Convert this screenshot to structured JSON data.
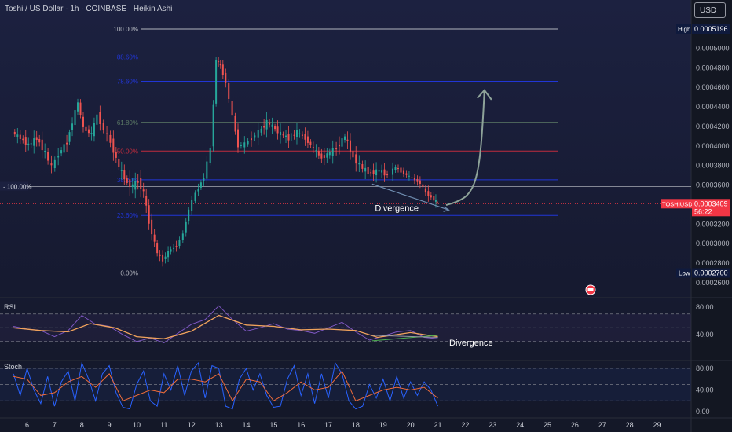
{
  "header": {
    "title": "Toshi / US Dollar · 1h · COINBASE · Heikin Ashi",
    "currency": "USD"
  },
  "chart_data": [
    {
      "type": "candlestick",
      "title": "Toshi / US Dollar · 1h · COINBASE · Heikin Ashi",
      "price_axis": [
        "0.0005000",
        "0.0004800",
        "0.0004600",
        "0.0004400",
        "0.0004200",
        "0.0004000",
        "0.0003800",
        "0.0003600",
        "0.0003400",
        "0.0003200",
        "0.0003000",
        "0.0002800",
        "0.0002600"
      ],
      "x_ticks": [
        "6",
        "7",
        "8",
        "9",
        "10",
        "11",
        "12",
        "13",
        "14",
        "15",
        "16",
        "17",
        "18",
        "19",
        "20",
        "21",
        "22",
        "23",
        "24",
        "25",
        "26",
        "27",
        "28",
        "29"
      ],
      "fib_levels": [
        {
          "label": "100.00%",
          "price": 0.0005196,
          "color": "#b2b5be"
        },
        {
          "label": "88.60%",
          "price": 0.0004911,
          "color": "#2136d6"
        },
        {
          "label": "78.60%",
          "price": 0.0004661,
          "color": "#2136d6"
        },
        {
          "label": "61.80%",
          "price": 0.0004241,
          "color": "#5c7a65"
        },
        {
          "label": "50.00%",
          "price": 0.0003948,
          "color": "#c02c3d"
        },
        {
          "label": "38.20%",
          "price": 0.0003654,
          "color": "#2136d6"
        },
        {
          "label": "23.60%",
          "price": 0.0003289,
          "color": "#2136d6"
        },
        {
          "label": "0.00%",
          "price": 0.00027,
          "color": "#b2b5be"
        }
      ],
      "horizontal_line": {
        "label": "100.00%",
        "price": 0.0003584
      },
      "high": {
        "label": "High",
        "price": "0.0005196"
      },
      "low": {
        "label": "Low",
        "price": "0.0002700"
      },
      "current": {
        "symbol": "TOSHIUSD",
        "price": "0.0003409",
        "countdown": "56:22"
      },
      "annotations": [
        "Divergence"
      ],
      "series_close": [
        {
          "day": 5.5,
          "price": 0.000414
        },
        {
          "day": 5.8,
          "price": 0.000408
        },
        {
          "day": 6.1,
          "price": 0.000401
        },
        {
          "day": 6.4,
          "price": 0.000408
        },
        {
          "day": 6.7,
          "price": 0.000393
        },
        {
          "day": 6.95,
          "price": 0.000378
        },
        {
          "day": 7.2,
          "price": 0.000392
        },
        {
          "day": 7.5,
          "price": 0.000404
        },
        {
          "day": 7.9,
          "price": 0.000445
        },
        {
          "day": 8.1,
          "price": 0.000418
        },
        {
          "day": 8.4,
          "price": 0.000412
        },
        {
          "day": 8.6,
          "price": 0.000432
        },
        {
          "day": 8.85,
          "price": 0.000416
        },
        {
          "day": 9.1,
          "price": 0.000404
        },
        {
          "day": 9.4,
          "price": 0.000378
        },
        {
          "day": 9.7,
          "price": 0.000362
        },
        {
          "day": 9.9,
          "price": 0.000359
        },
        {
          "day": 10.1,
          "price": 0.000364
        },
        {
          "day": 10.3,
          "price": 0.000352
        },
        {
          "day": 10.5,
          "price": 0.000322
        },
        {
          "day": 10.8,
          "price": 0.00029
        },
        {
          "day": 11.0,
          "price": 0.000283
        },
        {
          "day": 11.2,
          "price": 0.000292
        },
        {
          "day": 11.5,
          "price": 0.000298
        },
        {
          "day": 11.75,
          "price": 0.00031
        },
        {
          "day": 11.95,
          "price": 0.000335
        },
        {
          "day": 12.2,
          "price": 0.000352
        },
        {
          "day": 12.5,
          "price": 0.000368
        },
        {
          "day": 12.75,
          "price": 0.000398
        },
        {
          "day": 12.95,
          "price": 0.000488
        },
        {
          "day": 13.1,
          "price": 0.000482
        },
        {
          "day": 13.3,
          "price": 0.000465
        },
        {
          "day": 13.55,
          "price": 0.00043
        },
        {
          "day": 13.75,
          "price": 0.0004
        },
        {
          "day": 14.0,
          "price": 0.000402
        },
        {
          "day": 14.25,
          "price": 0.000408
        },
        {
          "day": 14.5,
          "price": 0.000414
        },
        {
          "day": 14.8,
          "price": 0.000424
        },
        {
          "day": 15.0,
          "price": 0.00042
        },
        {
          "day": 15.3,
          "price": 0.000412
        },
        {
          "day": 15.6,
          "price": 0.000408
        },
        {
          "day": 15.9,
          "price": 0.000414
        },
        {
          "day": 16.2,
          "price": 0.000408
        },
        {
          "day": 16.5,
          "price": 0.000397
        },
        {
          "day": 16.8,
          "price": 0.000388
        },
        {
          "day": 17.1,
          "price": 0.000393
        },
        {
          "day": 17.35,
          "price": 0.000398
        },
        {
          "day": 17.65,
          "price": 0.00041
        },
        {
          "day": 17.95,
          "price": 0.000388
        },
        {
          "day": 18.3,
          "price": 0.000377
        },
        {
          "day": 18.6,
          "price": 0.000372
        },
        {
          "day": 18.9,
          "price": 0.000375
        },
        {
          "day": 19.2,
          "price": 0.00037
        },
        {
          "day": 19.5,
          "price": 0.000378
        },
        {
          "day": 19.8,
          "price": 0.000372
        },
        {
          "day": 20.1,
          "price": 0.000367
        },
        {
          "day": 20.4,
          "price": 0.000362
        },
        {
          "day": 20.6,
          "price": 0.000352
        },
        {
          "day": 20.9,
          "price": 0.000345
        },
        {
          "day": 21.0,
          "price": 0.000341
        }
      ],
      "projection_target_price": 0.000457
    },
    {
      "type": "line",
      "title": "RSI",
      "y_ticks": [
        "80.00",
        "40.00"
      ],
      "annotations": [
        "Divergence"
      ],
      "series": [
        {
          "name": "RSI",
          "color": "#7e57c2",
          "values": [
            {
              "day": 5.5,
              "value": 52
            },
            {
              "day": 6.0,
              "value": 48
            },
            {
              "day": 6.5,
              "value": 46
            },
            {
              "day": 7.0,
              "value": 37
            },
            {
              "day": 7.5,
              "value": 46
            },
            {
              "day": 8.0,
              "value": 68
            },
            {
              "day": 8.5,
              "value": 55
            },
            {
              "day": 9.0,
              "value": 52
            },
            {
              "day": 9.5,
              "value": 40
            },
            {
              "day": 10.0,
              "value": 30
            },
            {
              "day": 10.5,
              "value": 35
            },
            {
              "day": 11.0,
              "value": 28
            },
            {
              "day": 11.5,
              "value": 42
            },
            {
              "day": 12.0,
              "value": 55
            },
            {
              "day": 12.5,
              "value": 62
            },
            {
              "day": 13.0,
              "value": 82
            },
            {
              "day": 13.5,
              "value": 62
            },
            {
              "day": 14.0,
              "value": 45
            },
            {
              "day": 14.5,
              "value": 50
            },
            {
              "day": 15.0,
              "value": 56
            },
            {
              "day": 15.5,
              "value": 48
            },
            {
              "day": 16.0,
              "value": 46
            },
            {
              "day": 16.5,
              "value": 42
            },
            {
              "day": 17.0,
              "value": 50
            },
            {
              "day": 17.5,
              "value": 58
            },
            {
              "day": 18.0,
              "value": 44
            },
            {
              "day": 18.5,
              "value": 32
            },
            {
              "day": 19.0,
              "value": 38
            },
            {
              "day": 19.5,
              "value": 44
            },
            {
              "day": 20.0,
              "value": 46
            },
            {
              "day": 20.5,
              "value": 36
            },
            {
              "day": 21.0,
              "value": 34
            }
          ]
        },
        {
          "name": "RSI-based MA",
          "color": "#f0a25c",
          "values": [
            {
              "day": 5.5,
              "value": 50
            },
            {
              "day": 6.5,
              "value": 46
            },
            {
              "day": 7.5,
              "value": 44
            },
            {
              "day": 8.3,
              "value": 56
            },
            {
              "day": 9.2,
              "value": 50
            },
            {
              "day": 10.0,
              "value": 37
            },
            {
              "day": 11.0,
              "value": 34
            },
            {
              "day": 12.0,
              "value": 45
            },
            {
              "day": 13.0,
              "value": 68
            },
            {
              "day": 14.0,
              "value": 54
            },
            {
              "day": 15.0,
              "value": 52
            },
            {
              "day": 16.0,
              "value": 47
            },
            {
              "day": 17.0,
              "value": 48
            },
            {
              "day": 18.0,
              "value": 46
            },
            {
              "day": 18.8,
              "value": 36
            },
            {
              "day": 20.0,
              "value": 43
            },
            {
              "day": 21.0,
              "value": 37
            }
          ]
        }
      ]
    },
    {
      "type": "line",
      "title": "Stoch",
      "y_ticks": [
        "80.00",
        "40.00",
        "0.00"
      ],
      "series": [
        {
          "name": "%K",
          "color": "#2962ff",
          "values": [
            {
              "day": 5.5,
              "value": 70
            },
            {
              "day": 5.75,
              "value": 30
            },
            {
              "day": 6.0,
              "value": 80
            },
            {
              "day": 6.25,
              "value": 40
            },
            {
              "day": 6.5,
              "value": 15
            },
            {
              "day": 6.75,
              "value": 65
            },
            {
              "day": 7.0,
              "value": 10
            },
            {
              "day": 7.25,
              "value": 55
            },
            {
              "day": 7.5,
              "value": 75
            },
            {
              "day": 7.75,
              "value": 20
            },
            {
              "day": 8.0,
              "value": 90
            },
            {
              "day": 8.25,
              "value": 60
            },
            {
              "day": 8.5,
              "value": 20
            },
            {
              "day": 8.75,
              "value": 70
            },
            {
              "day": 9.0,
              "value": 85
            },
            {
              "day": 9.25,
              "value": 35
            },
            {
              "day": 9.5,
              "value": 8
            },
            {
              "day": 9.75,
              "value": 5
            },
            {
              "day": 10.0,
              "value": 50
            },
            {
              "day": 10.25,
              "value": 75
            },
            {
              "day": 10.5,
              "value": 20
            },
            {
              "day": 10.75,
              "value": 10
            },
            {
              "day": 11.0,
              "value": 70
            },
            {
              "day": 11.25,
              "value": 40
            },
            {
              "day": 11.5,
              "value": 85
            },
            {
              "day": 11.75,
              "value": 30
            },
            {
              "day": 12.0,
              "value": 75
            },
            {
              "day": 12.25,
              "value": 90
            },
            {
              "day": 12.5,
              "value": 25
            },
            {
              "day": 12.75,
              "value": 85
            },
            {
              "day": 13.0,
              "value": 80
            },
            {
              "day": 13.25,
              "value": 10
            },
            {
              "day": 13.5,
              "value": 5
            },
            {
              "day": 13.75,
              "value": 60
            },
            {
              "day": 14.0,
              "value": 80
            },
            {
              "day": 14.25,
              "value": 40
            },
            {
              "day": 14.5,
              "value": 70
            },
            {
              "day": 14.75,
              "value": 30
            },
            {
              "day": 15.0,
              "value": 8
            },
            {
              "day": 15.25,
              "value": 10
            },
            {
              "day": 15.5,
              "value": 60
            },
            {
              "day": 15.75,
              "value": 85
            },
            {
              "day": 16.0,
              "value": 30
            },
            {
              "day": 16.25,
              "value": 70
            },
            {
              "day": 16.5,
              "value": 15
            },
            {
              "day": 16.75,
              "value": 70
            },
            {
              "day": 17.0,
              "value": 25
            },
            {
              "day": 17.25,
              "value": 90
            },
            {
              "day": 17.5,
              "value": 70
            },
            {
              "day": 17.75,
              "value": 20
            },
            {
              "day": 18.0,
              "value": 5
            },
            {
              "day": 18.25,
              "value": 10
            },
            {
              "day": 18.5,
              "value": 50
            },
            {
              "day": 18.75,
              "value": 25
            },
            {
              "day": 19.0,
              "value": 60
            },
            {
              "day": 19.25,
              "value": 20
            },
            {
              "day": 19.5,
              "value": 65
            },
            {
              "day": 19.75,
              "value": 25
            },
            {
              "day": 20.0,
              "value": 55
            },
            {
              "day": 20.25,
              "value": 30
            },
            {
              "day": 20.5,
              "value": 55
            },
            {
              "day": 20.75,
              "value": 40
            },
            {
              "day": 21.0,
              "value": 10
            }
          ]
        },
        {
          "name": "%D",
          "color": "#ef6c3a",
          "values": [
            {
              "day": 5.5,
              "value": 65
            },
            {
              "day": 6.0,
              "value": 60
            },
            {
              "day": 6.5,
              "value": 30
            },
            {
              "day": 7.0,
              "value": 35
            },
            {
              "day": 7.5,
              "value": 55
            },
            {
              "day": 8.0,
              "value": 65
            },
            {
              "day": 8.5,
              "value": 45
            },
            {
              "day": 9.0,
              "value": 70
            },
            {
              "day": 9.5,
              "value": 20
            },
            {
              "day": 10.0,
              "value": 30
            },
            {
              "day": 10.5,
              "value": 40
            },
            {
              "day": 11.0,
              "value": 35
            },
            {
              "day": 11.5,
              "value": 60
            },
            {
              "day": 12.0,
              "value": 60
            },
            {
              "day": 12.5,
              "value": 55
            },
            {
              "day": 13.0,
              "value": 70
            },
            {
              "day": 13.5,
              "value": 20
            },
            {
              "day": 14.0,
              "value": 60
            },
            {
              "day": 14.5,
              "value": 55
            },
            {
              "day": 15.0,
              "value": 20
            },
            {
              "day": 15.5,
              "value": 35
            },
            {
              "day": 16.0,
              "value": 55
            },
            {
              "day": 16.5,
              "value": 40
            },
            {
              "day": 17.0,
              "value": 45
            },
            {
              "day": 17.5,
              "value": 75
            },
            {
              "day": 18.0,
              "value": 20
            },
            {
              "day": 18.5,
              "value": 30
            },
            {
              "day": 19.0,
              "value": 40
            },
            {
              "day": 19.5,
              "value": 45
            },
            {
              "day": 20.0,
              "value": 40
            },
            {
              "day": 20.5,
              "value": 45
            },
            {
              "day": 21.0,
              "value": 25
            }
          ]
        }
      ]
    }
  ]
}
